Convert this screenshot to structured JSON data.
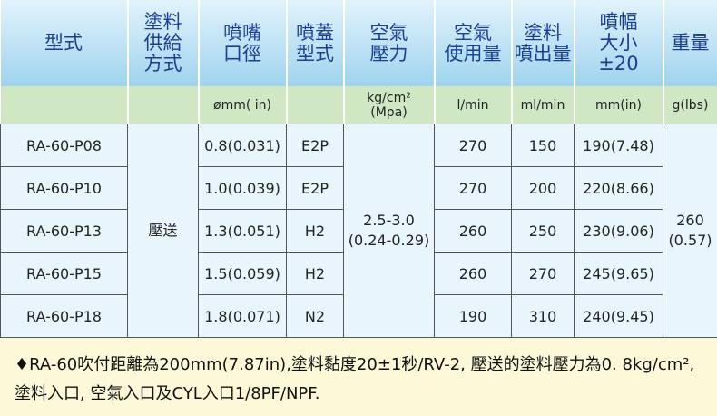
{
  "header": {
    "columns": [
      [
        "型式"
      ],
      [
        "塗料",
        "供給",
        "方式"
      ],
      [
        "噴嘴",
        "口徑"
      ],
      [
        "噴蓋",
        "型式"
      ],
      [
        "空氣",
        "壓力"
      ],
      [
        "空氣",
        "使用量"
      ],
      [
        "塗料",
        "噴出量"
      ],
      [
        "噴幅",
        "大小",
        "±20"
      ],
      [
        "重量"
      ]
    ]
  },
  "units": {
    "nozzle": "ømm( in)",
    "pressure": [
      "kg/cm²",
      "(Mpa)"
    ],
    "air_use": "l/min",
    "output": "ml/min",
    "width": "mm(in)",
    "weight": "g(lbs)"
  },
  "table": {
    "feed": "壓送",
    "pressure": [
      "2.5-3.0",
      "(0.24-0.29)"
    ],
    "weight": [
      "260",
      "(0.57)"
    ],
    "rows": [
      [
        "RA-60-P08",
        "0.8(0.031)",
        "E2P",
        "270",
        "150",
        "190(7.48)"
      ],
      [
        "RA-60-P10",
        "1.0(0.039)",
        "E2P",
        "270",
        "200",
        "220(8.66)"
      ],
      [
        "RA-60-P13",
        "1.3(0.051)",
        "H2",
        "260",
        "250",
        "230(9.06)"
      ],
      [
        "RA-60-P15",
        "1.5(0.059)",
        "H2",
        "260",
        "270",
        "245(9.65)"
      ],
      [
        "RA-60-P18",
        "1.8(0.071)",
        "N2",
        "190",
        "310",
        "240(9.45)"
      ]
    ]
  },
  "note": "♦RA-60吹付距離為200mm(7.87in),塗料黏度20±1秒/RV-2, 壓送的塗料壓力為0. 8kg/cm², 塗料入口, 空氣入口及CYL入口1/8PF/NPF."
}
